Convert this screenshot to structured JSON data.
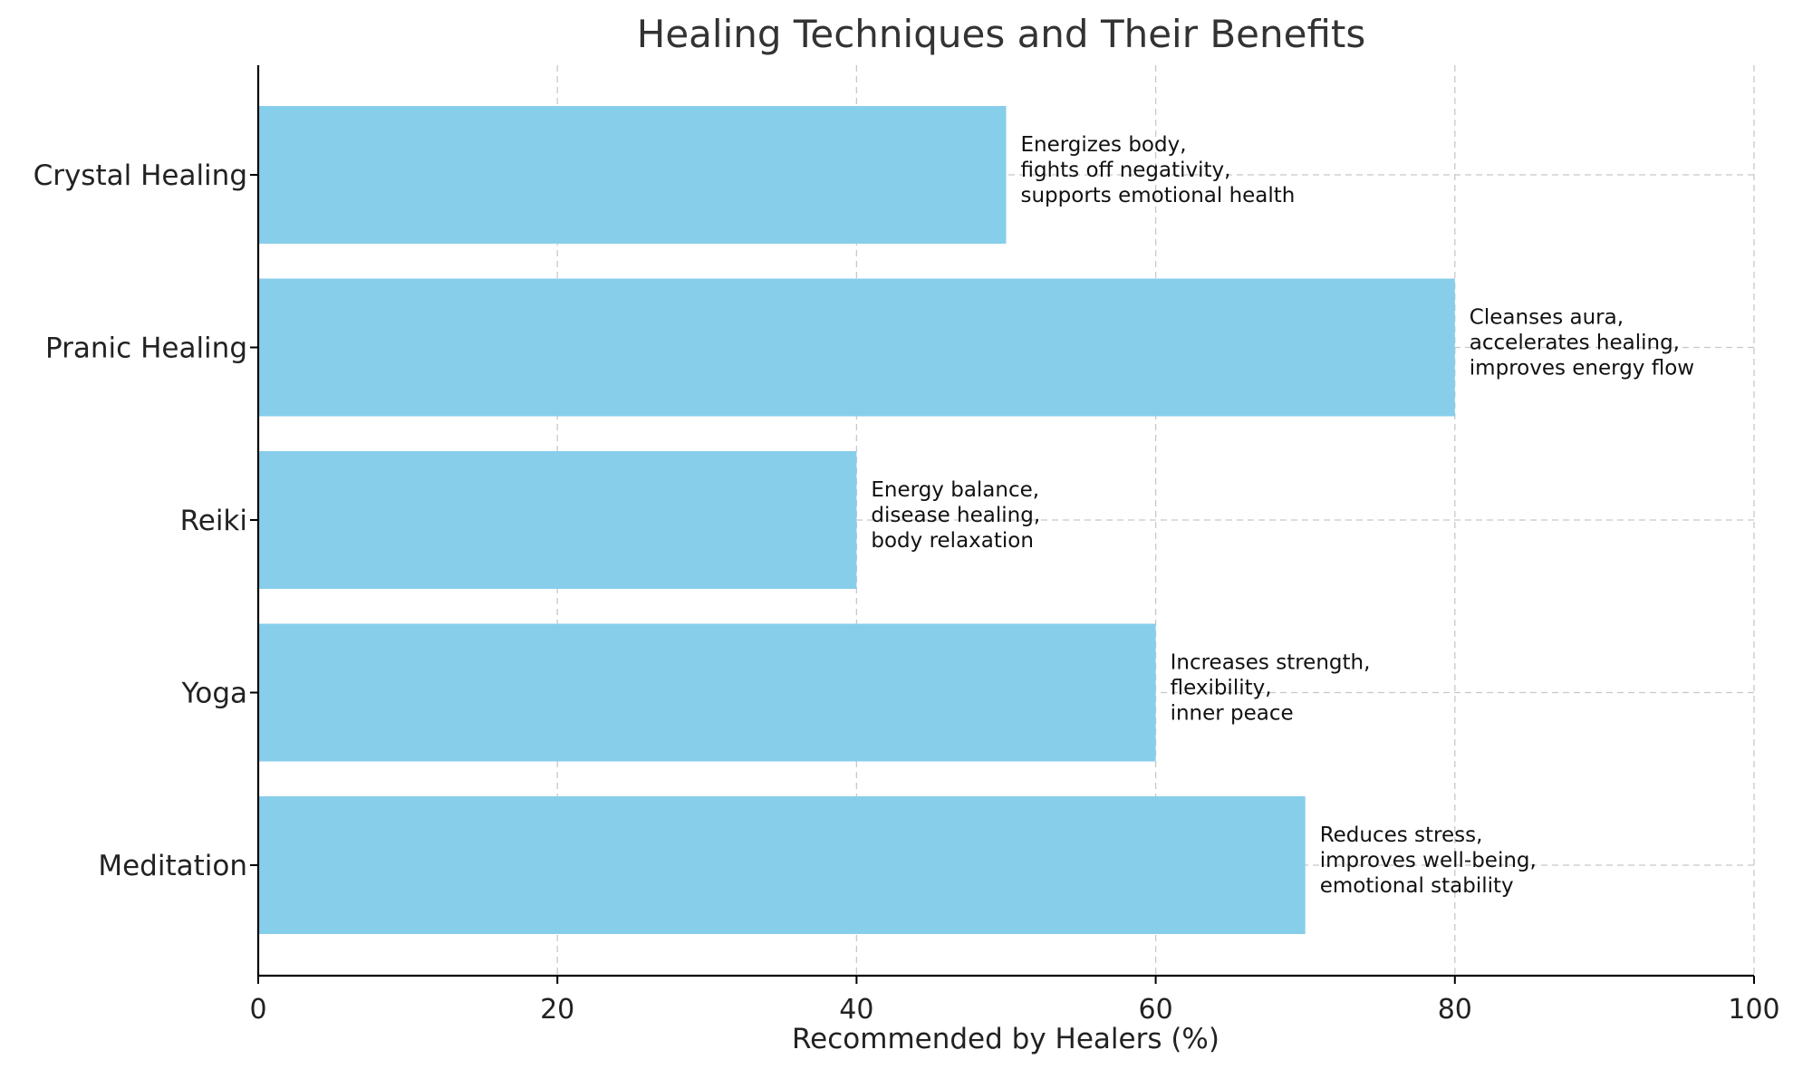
{
  "chart_data": {
    "type": "bar",
    "orientation": "horizontal",
    "title": "Healing Techniques and Their Benefits",
    "xlabel": "Recommended by Healers (%)",
    "ylabel": "",
    "xlim": [
      0,
      100
    ],
    "xticks": [
      0,
      20,
      40,
      60,
      80,
      100
    ],
    "grid": true,
    "bar_color": "#87CEEB",
    "categories": [
      "Meditation",
      "Yoga",
      "Reiki",
      "Pranic Healing",
      "Crystal Healing"
    ],
    "values": [
      70,
      60,
      40,
      80,
      50
    ],
    "annotations": [
      [
        "Reduces stress,",
        "improves well-being,",
        "emotional stability"
      ],
      [
        "Increases strength,",
        "flexibility,",
        "inner peace"
      ],
      [
        "Energy balance,",
        "disease healing,",
        "body relaxation"
      ],
      [
        "Cleanses aura,",
        "accelerates healing,",
        "improves energy flow"
      ],
      [
        "Energizes body,",
        "fights off negativity,",
        "supports emotional health"
      ]
    ]
  }
}
